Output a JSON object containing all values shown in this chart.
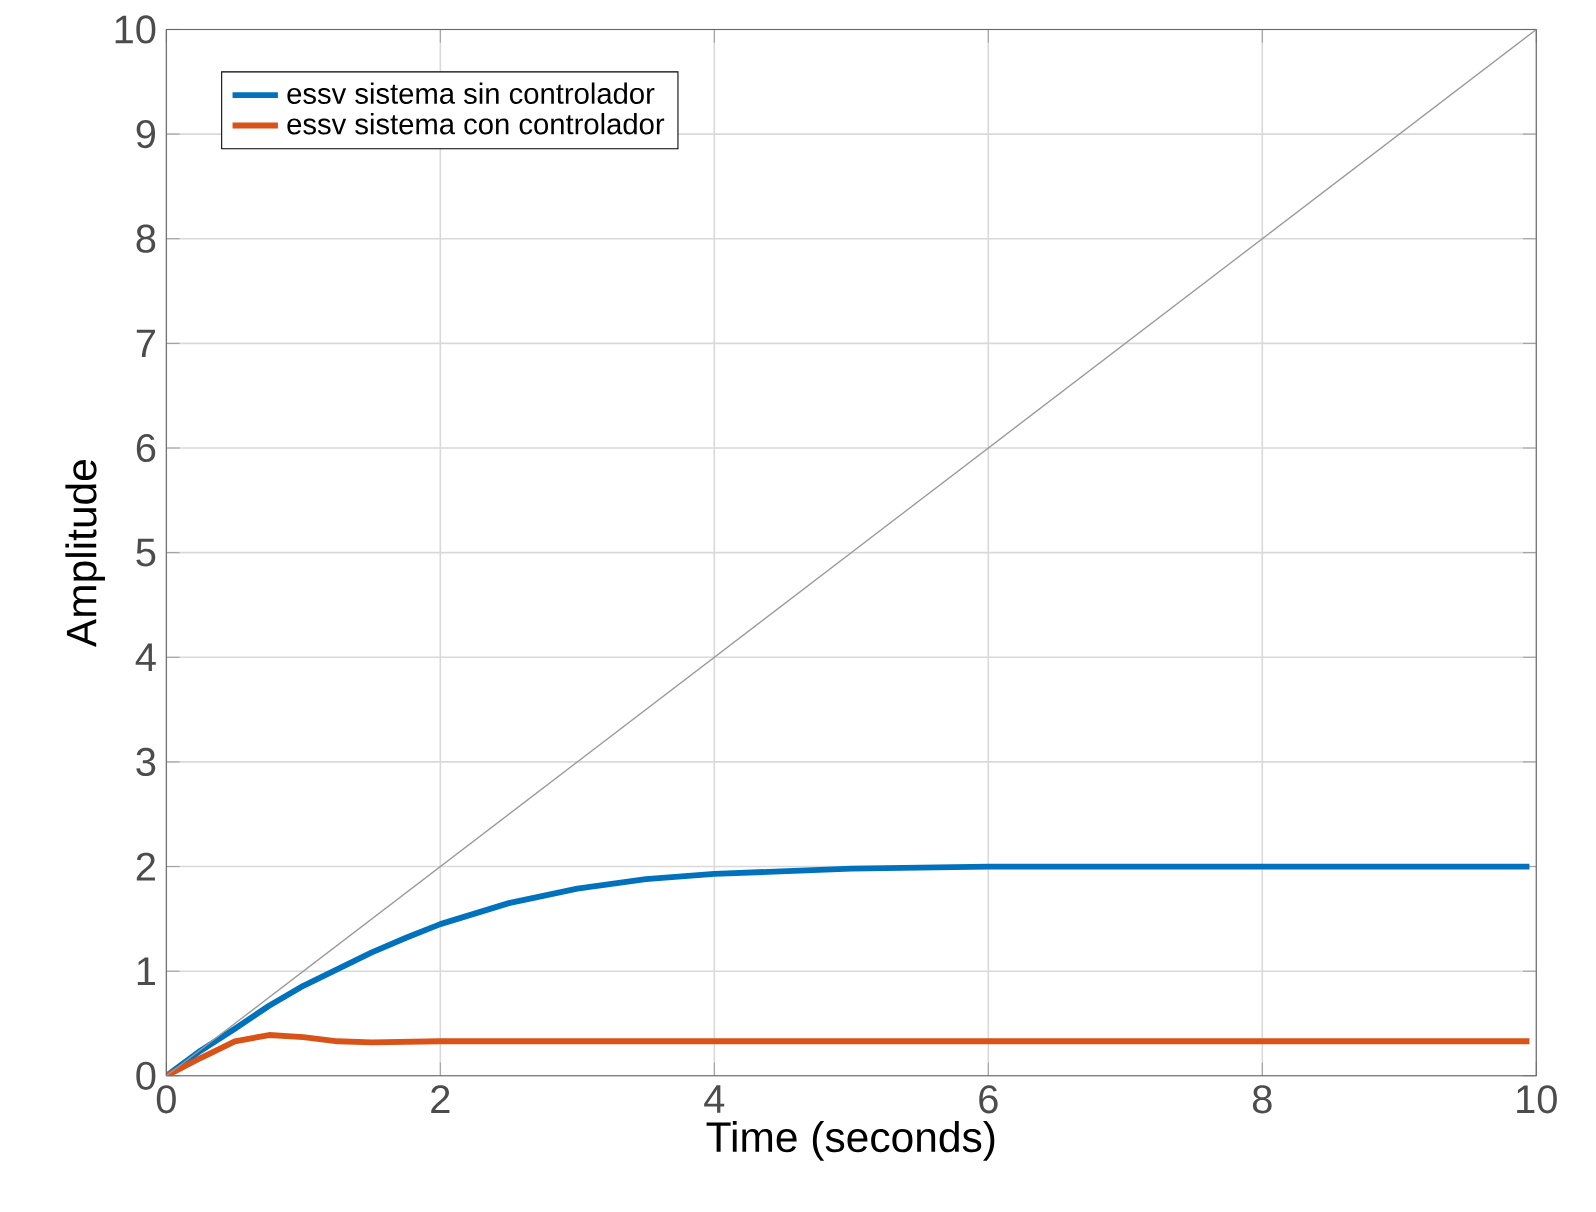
{
  "chart_data": {
    "type": "line",
    "xlabel": "Time (seconds)",
    "ylabel": "Amplitude",
    "xlim": [
      0,
      10
    ],
    "ylim": [
      0,
      10
    ],
    "xticks": [
      0,
      2,
      4,
      6,
      8,
      10
    ],
    "yticks": [
      0,
      1,
      2,
      3,
      4,
      5,
      6,
      7,
      8,
      9,
      10
    ],
    "grid": true,
    "legend": "top left",
    "series": [
      {
        "name": "essv sistema sin controlador",
        "color": "#0072bd",
        "x": [
          0,
          0.25,
          0.5,
          0.75,
          1,
          1.25,
          1.5,
          1.75,
          2,
          2.5,
          3,
          3.5,
          4,
          5,
          6,
          7,
          8,
          9,
          9.95
        ],
        "values": [
          0,
          0.24,
          0.45,
          0.67,
          0.86,
          1.02,
          1.18,
          1.32,
          1.45,
          1.65,
          1.79,
          1.88,
          1.93,
          1.98,
          2.0,
          2.0,
          2.0,
          2.0,
          2.0
        ]
      },
      {
        "name": "essv sistema con controlador",
        "color": "#d95319",
        "x": [
          0,
          0.25,
          0.5,
          0.75,
          1,
          1.25,
          1.5,
          2,
          3,
          4,
          5,
          6,
          7,
          8,
          9,
          9.95
        ],
        "values": [
          0,
          0.17,
          0.33,
          0.39,
          0.37,
          0.33,
          0.32,
          0.33,
          0.33,
          0.33,
          0.33,
          0.33,
          0.33,
          0.33,
          0.33,
          0.33
        ]
      },
      {
        "color": "#999999",
        "x": [
          0,
          10
        ],
        "values": [
          0,
          10
        ]
      }
    ]
  }
}
